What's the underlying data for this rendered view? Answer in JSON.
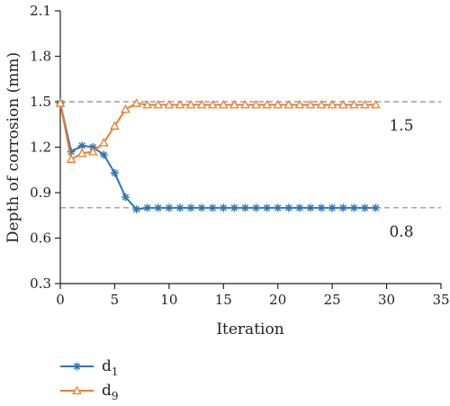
{
  "chart_data": {
    "type": "line",
    "xlabel": "Iteration",
    "ylabel": "Depth of corrosion (mm)",
    "xlim": [
      0,
      35
    ],
    "ylim": [
      0.3,
      2.1
    ],
    "xticks": [
      "0",
      "5",
      "10",
      "15",
      "20",
      "25",
      "30",
      "35"
    ],
    "yticks": [
      "0.3",
      "0.6",
      "0.9",
      "1.2",
      "1.5",
      "1.8",
      "2.1"
    ],
    "grid": false,
    "legend_position": "bottom-left",
    "reference_lines": [
      {
        "y": 1.5,
        "label": "1.5",
        "color": "#888888"
      },
      {
        "y": 0.8,
        "label": "0.8",
        "color": "#888888"
      }
    ],
    "series": [
      {
        "name": "d",
        "subscript": "1",
        "color": "#2e75b6",
        "marker": "asterisk",
        "x": [
          0,
          1,
          2,
          3,
          4,
          5,
          6,
          7,
          8,
          9,
          10,
          11,
          12,
          13,
          14,
          15,
          16,
          17,
          18,
          19,
          20,
          21,
          22,
          23,
          24,
          25,
          26,
          27,
          28,
          29
        ],
        "values": [
          1.49,
          1.17,
          1.21,
          1.2,
          1.15,
          1.03,
          0.87,
          0.79,
          0.8,
          0.8,
          0.8,
          0.8,
          0.8,
          0.8,
          0.8,
          0.8,
          0.8,
          0.8,
          0.8,
          0.8,
          0.8,
          0.8,
          0.8,
          0.8,
          0.8,
          0.8,
          0.8,
          0.8,
          0.8,
          0.8
        ]
      },
      {
        "name": "d",
        "subscript": "9",
        "color": "#ed7d31",
        "marker": "triangle",
        "x": [
          0,
          1,
          2,
          3,
          4,
          5,
          6,
          7,
          8,
          9,
          10,
          11,
          12,
          13,
          14,
          15,
          16,
          17,
          18,
          19,
          20,
          21,
          22,
          23,
          24,
          25,
          26,
          27,
          28,
          29
        ],
        "values": [
          1.49,
          1.12,
          1.16,
          1.17,
          1.23,
          1.34,
          1.45,
          1.49,
          1.48,
          1.48,
          1.48,
          1.48,
          1.48,
          1.48,
          1.48,
          1.48,
          1.48,
          1.48,
          1.48,
          1.48,
          1.48,
          1.48,
          1.48,
          1.48,
          1.48,
          1.48,
          1.48,
          1.48,
          1.48,
          1.48
        ]
      }
    ]
  }
}
